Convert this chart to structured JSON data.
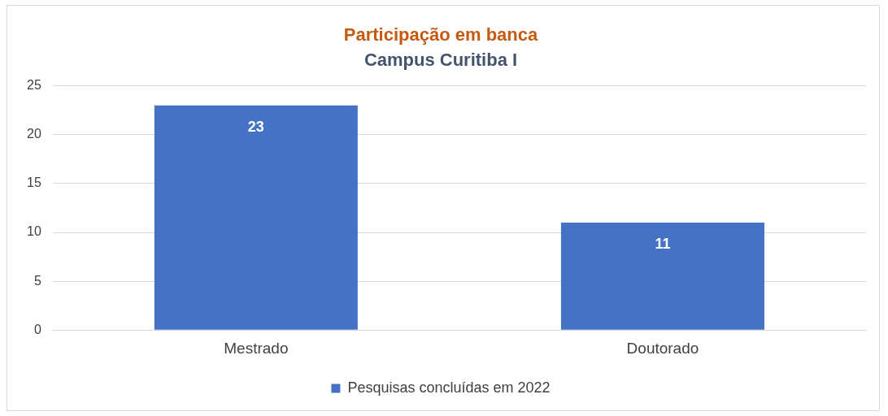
{
  "chart_data": {
    "type": "bar",
    "title": "Participação em banca",
    "subtitle": "Campus Curitiba I",
    "categories": [
      "Mestrado",
      "Doutorado"
    ],
    "series": [
      {
        "name": "Pesquisas concluídas em 2022",
        "color": "#4472c4",
        "values": [
          23,
          11
        ]
      }
    ],
    "ylim": [
      0,
      25
    ],
    "yticks": [
      0,
      5,
      10,
      15,
      20,
      25
    ],
    "grid": "y",
    "legend": "bottom",
    "data_labels": true
  }
}
